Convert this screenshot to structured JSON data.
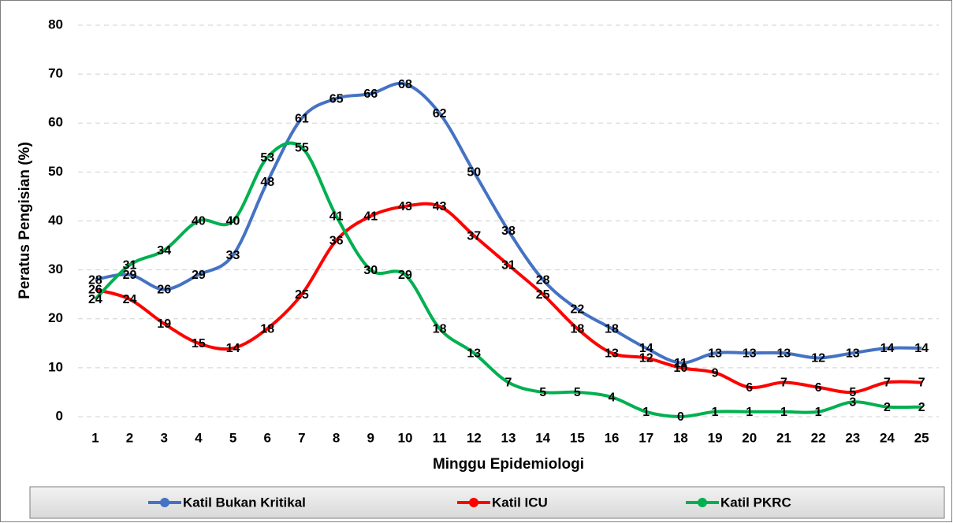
{
  "chart_data": {
    "type": "line",
    "x_label": "Minggu Epidemiologi",
    "y_label": "Peratus Pengisian (%)",
    "categories": [
      "1",
      "2",
      "3",
      "4",
      "5",
      "6",
      "7",
      "8",
      "9",
      "10",
      "11",
      "12",
      "13",
      "14",
      "15",
      "16",
      "17",
      "18",
      "19",
      "20",
      "21",
      "22",
      "23",
      "24",
      "25"
    ],
    "series": [
      {
        "name": "Katil Bukan Kritikal",
        "color": "#4472c4",
        "values": [
          28,
          29,
          26,
          29,
          33,
          48,
          61,
          65,
          66,
          68,
          62,
          50,
          38,
          28,
          22,
          18,
          14,
          11,
          13,
          13,
          13,
          12,
          13,
          14,
          14
        ]
      },
      {
        "name": "Katil ICU",
        "color": "#ff0000",
        "values": [
          26,
          24,
          19,
          15,
          14,
          18,
          25,
          36,
          41,
          43,
          43,
          37,
          31,
          25,
          18,
          13,
          12,
          10,
          9,
          6,
          7,
          6,
          5,
          7,
          7
        ]
      },
      {
        "name": "Katil PKRC",
        "color": "#00b050",
        "values": [
          24,
          31,
          34,
          40,
          40,
          53,
          55,
          41,
          30,
          29,
          18,
          13,
          7,
          5,
          5,
          4,
          1,
          0,
          1,
          1,
          1,
          1,
          3,
          2,
          2
        ]
      }
    ],
    "ylim": [
      0,
      80
    ],
    "yticks": [
      0,
      10,
      20,
      30,
      40,
      50,
      60,
      70,
      80
    ],
    "grid": true,
    "legend": "bottom"
  }
}
